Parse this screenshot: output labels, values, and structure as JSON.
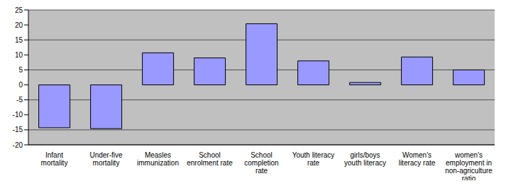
{
  "chart_data": {
    "type": "bar",
    "categories": [
      "Infant mortality",
      "Under-five mortality",
      "Measles immunization",
      "School enrolment rate",
      "School completion rate",
      "Youth literacy rate",
      "girls/boys youth literacy",
      "Women's literacy rate",
      "women's employment in non-agriculture ratio"
    ],
    "values": [
      -14.3,
      -14.6,
      10.7,
      9,
      20.4,
      8,
      0.8,
      9.3,
      5
    ],
    "color": "#9999ff",
    "ylim": [
      -20,
      25
    ],
    "yticks": [
      -20,
      -15,
      -10,
      -5,
      0,
      5,
      10,
      15,
      20,
      25
    ],
    "grid": true
  }
}
